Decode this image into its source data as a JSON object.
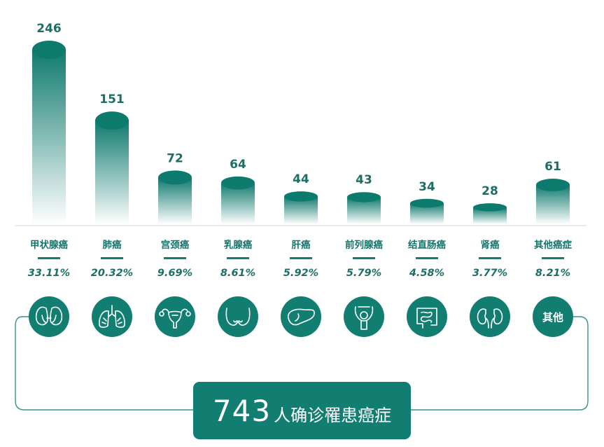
{
  "colors": {
    "primary": "#127e72",
    "bar_top": "#0d7a6e",
    "label": "#1e6e66",
    "line": "#3c9089"
  },
  "chart_data": {
    "type": "bar",
    "categories": [
      "甲状腺癌",
      "肺癌",
      "宫颈癌",
      "乳腺癌",
      "肝癌",
      "前列腺癌",
      "结直肠癌",
      "肾癌",
      "其他癌症"
    ],
    "values": [
      246,
      151,
      72,
      64,
      44,
      43,
      34,
      28,
      61
    ],
    "percentages": [
      "33.11%",
      "20.32%",
      "9.69%",
      "8.61%",
      "5.92%",
      "5.79%",
      "4.58%",
      "3.77%",
      "8.21%"
    ],
    "ylim": [
      0,
      246
    ],
    "icons": [
      "thyroid-icon",
      "lungs-icon",
      "uterus-icon",
      "breast-icon",
      "liver-icon",
      "prostate-icon",
      "intestine-icon",
      "kidneys-icon",
      "other-icon"
    ],
    "other_icon_label": "其他"
  },
  "total": {
    "number": "743",
    "text": "人确诊罹患癌症"
  }
}
